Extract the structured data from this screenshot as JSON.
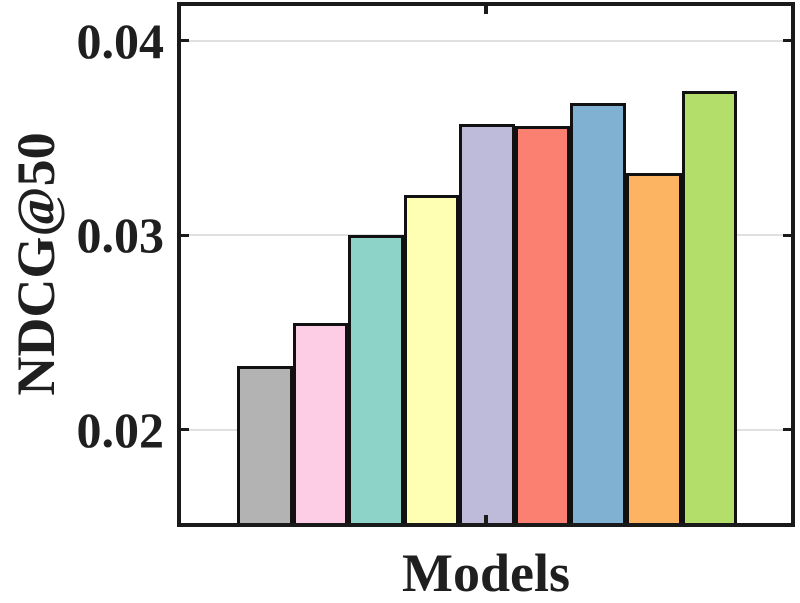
{
  "figure": {
    "background": "#ffffff",
    "axis_color": "#1a1a1a",
    "grid_color": "#e0e0e0",
    "text_color": "#1f1f1f",
    "bar_edge_color": "#111111"
  },
  "chart_data": {
    "type": "bar",
    "title": "",
    "xlabel": "Models",
    "ylabel": "NDCG@50",
    "ylim": [
      0.015,
      0.042
    ],
    "yticks": [
      0.02,
      0.03,
      0.04
    ],
    "ytick_labels": [
      "0.02",
      "0.03",
      "0.04"
    ],
    "xtick_labels": [],
    "grid": "horizontal gridlines at y ticks",
    "legend": "none",
    "bars": [
      {
        "name": "bar-1-gray",
        "value": 0.0233,
        "color": "#b3b3b3"
      },
      {
        "name": "bar-2-pink",
        "value": 0.0255,
        "color": "#fccde5"
      },
      {
        "name": "bar-3-teal",
        "value": 0.03,
        "color": "#8dd3c7"
      },
      {
        "name": "bar-4-yellow",
        "value": 0.0321,
        "color": "#ffffb3"
      },
      {
        "name": "bar-5-lavender",
        "value": 0.0357,
        "color": "#bebada"
      },
      {
        "name": "bar-6-salmon",
        "value": 0.0356,
        "color": "#fb8072"
      },
      {
        "name": "bar-7-blue",
        "value": 0.0368,
        "color": "#80b1d3"
      },
      {
        "name": "bar-8-orange",
        "value": 0.0332,
        "color": "#fdb462"
      },
      {
        "name": "bar-9-green",
        "value": 0.0374,
        "color": "#b3de69"
      }
    ]
  }
}
